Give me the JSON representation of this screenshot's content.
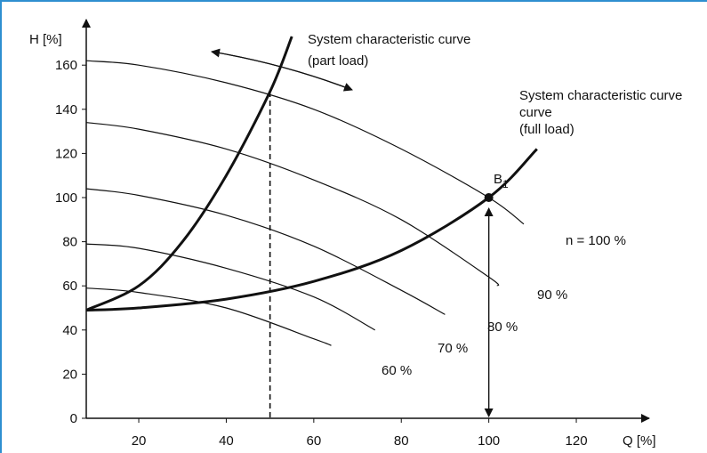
{
  "chart_data": {
    "type": "line",
    "xlabel": "Q [%]",
    "ylabel": "H [%]",
    "xlim": [
      8,
      130
    ],
    "ylim": [
      0,
      170
    ],
    "xticks": [
      20,
      40,
      60,
      80,
      100,
      120
    ],
    "yticks": [
      0,
      20,
      40,
      60,
      80,
      100,
      120,
      140,
      160
    ],
    "grid": false,
    "series": [
      {
        "name": "n = 100 %",
        "x": [
          8,
          20,
          40,
          60,
          80,
          100,
          108
        ],
        "y": [
          162,
          160,
          152,
          140,
          122,
          100,
          88
        ]
      },
      {
        "name": "90 %",
        "x": [
          8,
          20,
          40,
          60,
          80,
          100,
          102
        ],
        "y": [
          134,
          131,
          122,
          108,
          90,
          64,
          60
        ]
      },
      {
        "name": "80 %",
        "x": [
          8,
          20,
          40,
          60,
          80,
          90
        ],
        "y": [
          104,
          101,
          92,
          78,
          58,
          47
        ]
      },
      {
        "name": "70 %",
        "x": [
          8,
          20,
          40,
          60,
          74
        ],
        "y": [
          79,
          77,
          68,
          55,
          40
        ]
      },
      {
        "name": "60 %",
        "x": [
          8,
          20,
          40,
          60,
          64
        ],
        "y": [
          59,
          57,
          50,
          36,
          33
        ]
      },
      {
        "name": "System characteristic curve (full load)",
        "x": [
          8,
          20,
          40,
          60,
          80,
          100,
          111
        ],
        "y": [
          49,
          50,
          54,
          62,
          76,
          100,
          122
        ]
      },
      {
        "name": "System characteristic curve (part load)",
        "x": [
          8,
          20,
          30,
          40,
          50,
          55
        ],
        "y": [
          49,
          60,
          80,
          110,
          148,
          173
        ]
      }
    ],
    "operating_point": {
      "label": "B",
      "subscript": "1",
      "x": 100,
      "y": 100
    },
    "part_load_marker_x": 50,
    "annotations": {
      "part_load_title_line1": "System characteristic curve",
      "part_load_title_line2": "(part load)",
      "full_load_title_line1": "System characteristic curve",
      "full_load_title_line2": "curve",
      "full_load_title_line3": "(full load)",
      "label_100": "n = 100 %",
      "label_90": "90 %",
      "label_80": "80 %",
      "label_70": "70 %",
      "label_60": "60 %"
    }
  }
}
